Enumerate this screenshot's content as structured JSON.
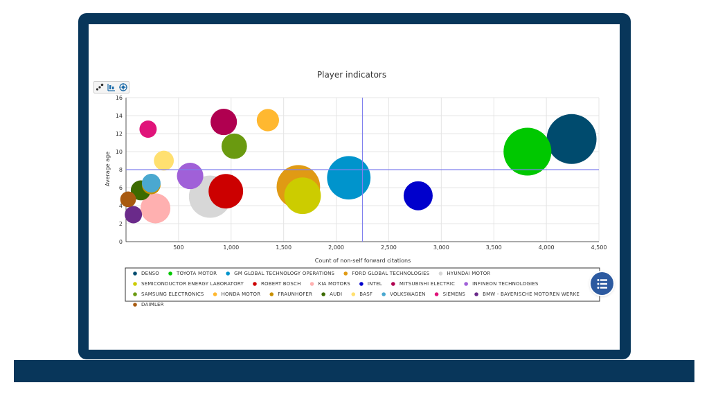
{
  "colors": {
    "frame": "#08365a",
    "crosshair": "#8080ee",
    "legend_button": "#2c5aa0"
  },
  "toolbar": {
    "icons": [
      "scatter-mode-icon",
      "grid-settings-icon",
      "target-icon"
    ]
  },
  "legend_button": {
    "icon": "list-icon"
  },
  "chart_data": {
    "type": "bubble",
    "title": "Player indicators",
    "xlabel": "Count of non-self forward citations",
    "ylabel": "Average age",
    "xlim": [
      0,
      4500
    ],
    "ylim": [
      0,
      16
    ],
    "xticks": [
      500,
      1000,
      1500,
      2000,
      2500,
      3000,
      3500,
      4000,
      4500
    ],
    "xtick_labels": [
      "500",
      "1,000",
      "1,500",
      "2,000",
      "2,500",
      "3,000",
      "3,500",
      "4,000",
      "4,500"
    ],
    "yticks": [
      0,
      2,
      4,
      6,
      8,
      10,
      12,
      14,
      16
    ],
    "ytick_labels": [
      "0",
      "2",
      "4",
      "6",
      "8",
      "10",
      "12",
      "14",
      "16"
    ],
    "grid": true,
    "legend_position": "bottom",
    "crosshair": {
      "x": 2250,
      "y": 8
    },
    "series": [
      {
        "name": "DENSO",
        "color": "#004b6e",
        "x": 4240,
        "y": 11.4,
        "size": 100
      },
      {
        "name": "TOYOTA MOTOR",
        "color": "#00c800",
        "x": 3820,
        "y": 10.0,
        "size": 92
      },
      {
        "name": "GM GLOBAL TECHNOLOGY OPERATIONS",
        "color": "#0094cc",
        "x": 2120,
        "y": 7.1,
        "size": 76
      },
      {
        "name": "FORD GLOBAL TECHNOLOGIES",
        "color": "#e09a14",
        "x": 1640,
        "y": 6.1,
        "size": 76
      },
      {
        "name": "HYUNDAI MOTOR",
        "color": "#d7d7d7",
        "x": 800,
        "y": 5.0,
        "size": 72
      },
      {
        "name": "SEMICONDUCTOR ENERGY LABORATORY",
        "color": "#cccc00",
        "x": 1680,
        "y": 5.1,
        "size": 54
      },
      {
        "name": "ROBERT BOSCH",
        "color": "#cc0000",
        "x": 950,
        "y": 5.6,
        "size": 48
      },
      {
        "name": "KIA MOTORS",
        "color": "#ffb0b0",
        "x": 280,
        "y": 3.7,
        "size": 36
      },
      {
        "name": "INTEL",
        "color": "#0000cc",
        "x": 2780,
        "y": 5.1,
        "size": 34
      },
      {
        "name": "MITSUBISHI ELECTRIC",
        "color": "#b00050",
        "x": 930,
        "y": 13.3,
        "size": 28
      },
      {
        "name": "INFINEON TECHNOLOGIES",
        "color": "#a060d8",
        "x": 610,
        "y": 7.3,
        "size": 28
      },
      {
        "name": "SAMSUNG ELECTRONICS",
        "color": "#6a9a10",
        "x": 1030,
        "y": 10.6,
        "size": 26
      },
      {
        "name": "HONDA MOTOR",
        "color": "#ffb830",
        "x": 1350,
        "y": 13.5,
        "size": 20
      },
      {
        "name": "FRAUNHOFER",
        "color": "#c89000",
        "x": 240,
        "y": 6.3,
        "size": 14
      },
      {
        "name": "AUDI",
        "color": "#3d6b00",
        "x": 140,
        "y": 5.7,
        "size": 16
      },
      {
        "name": "BASF",
        "color": "#ffe070",
        "x": 360,
        "y": 9.0,
        "size": 16
      },
      {
        "name": "VOLKSWAGEN",
        "color": "#4aa8d0",
        "x": 240,
        "y": 6.5,
        "size": 14
      },
      {
        "name": "SIEMENS",
        "color": "#e0147a",
        "x": 210,
        "y": 12.5,
        "size": 12
      },
      {
        "name": "BMW - BAYERISCHE MOTOREN WERKE",
        "color": "#6a2a8a",
        "x": 70,
        "y": 3.0,
        "size": 12
      },
      {
        "name": "DAIMLER",
        "color": "#a85a10",
        "x": 20,
        "y": 4.7,
        "size": 10
      }
    ]
  }
}
